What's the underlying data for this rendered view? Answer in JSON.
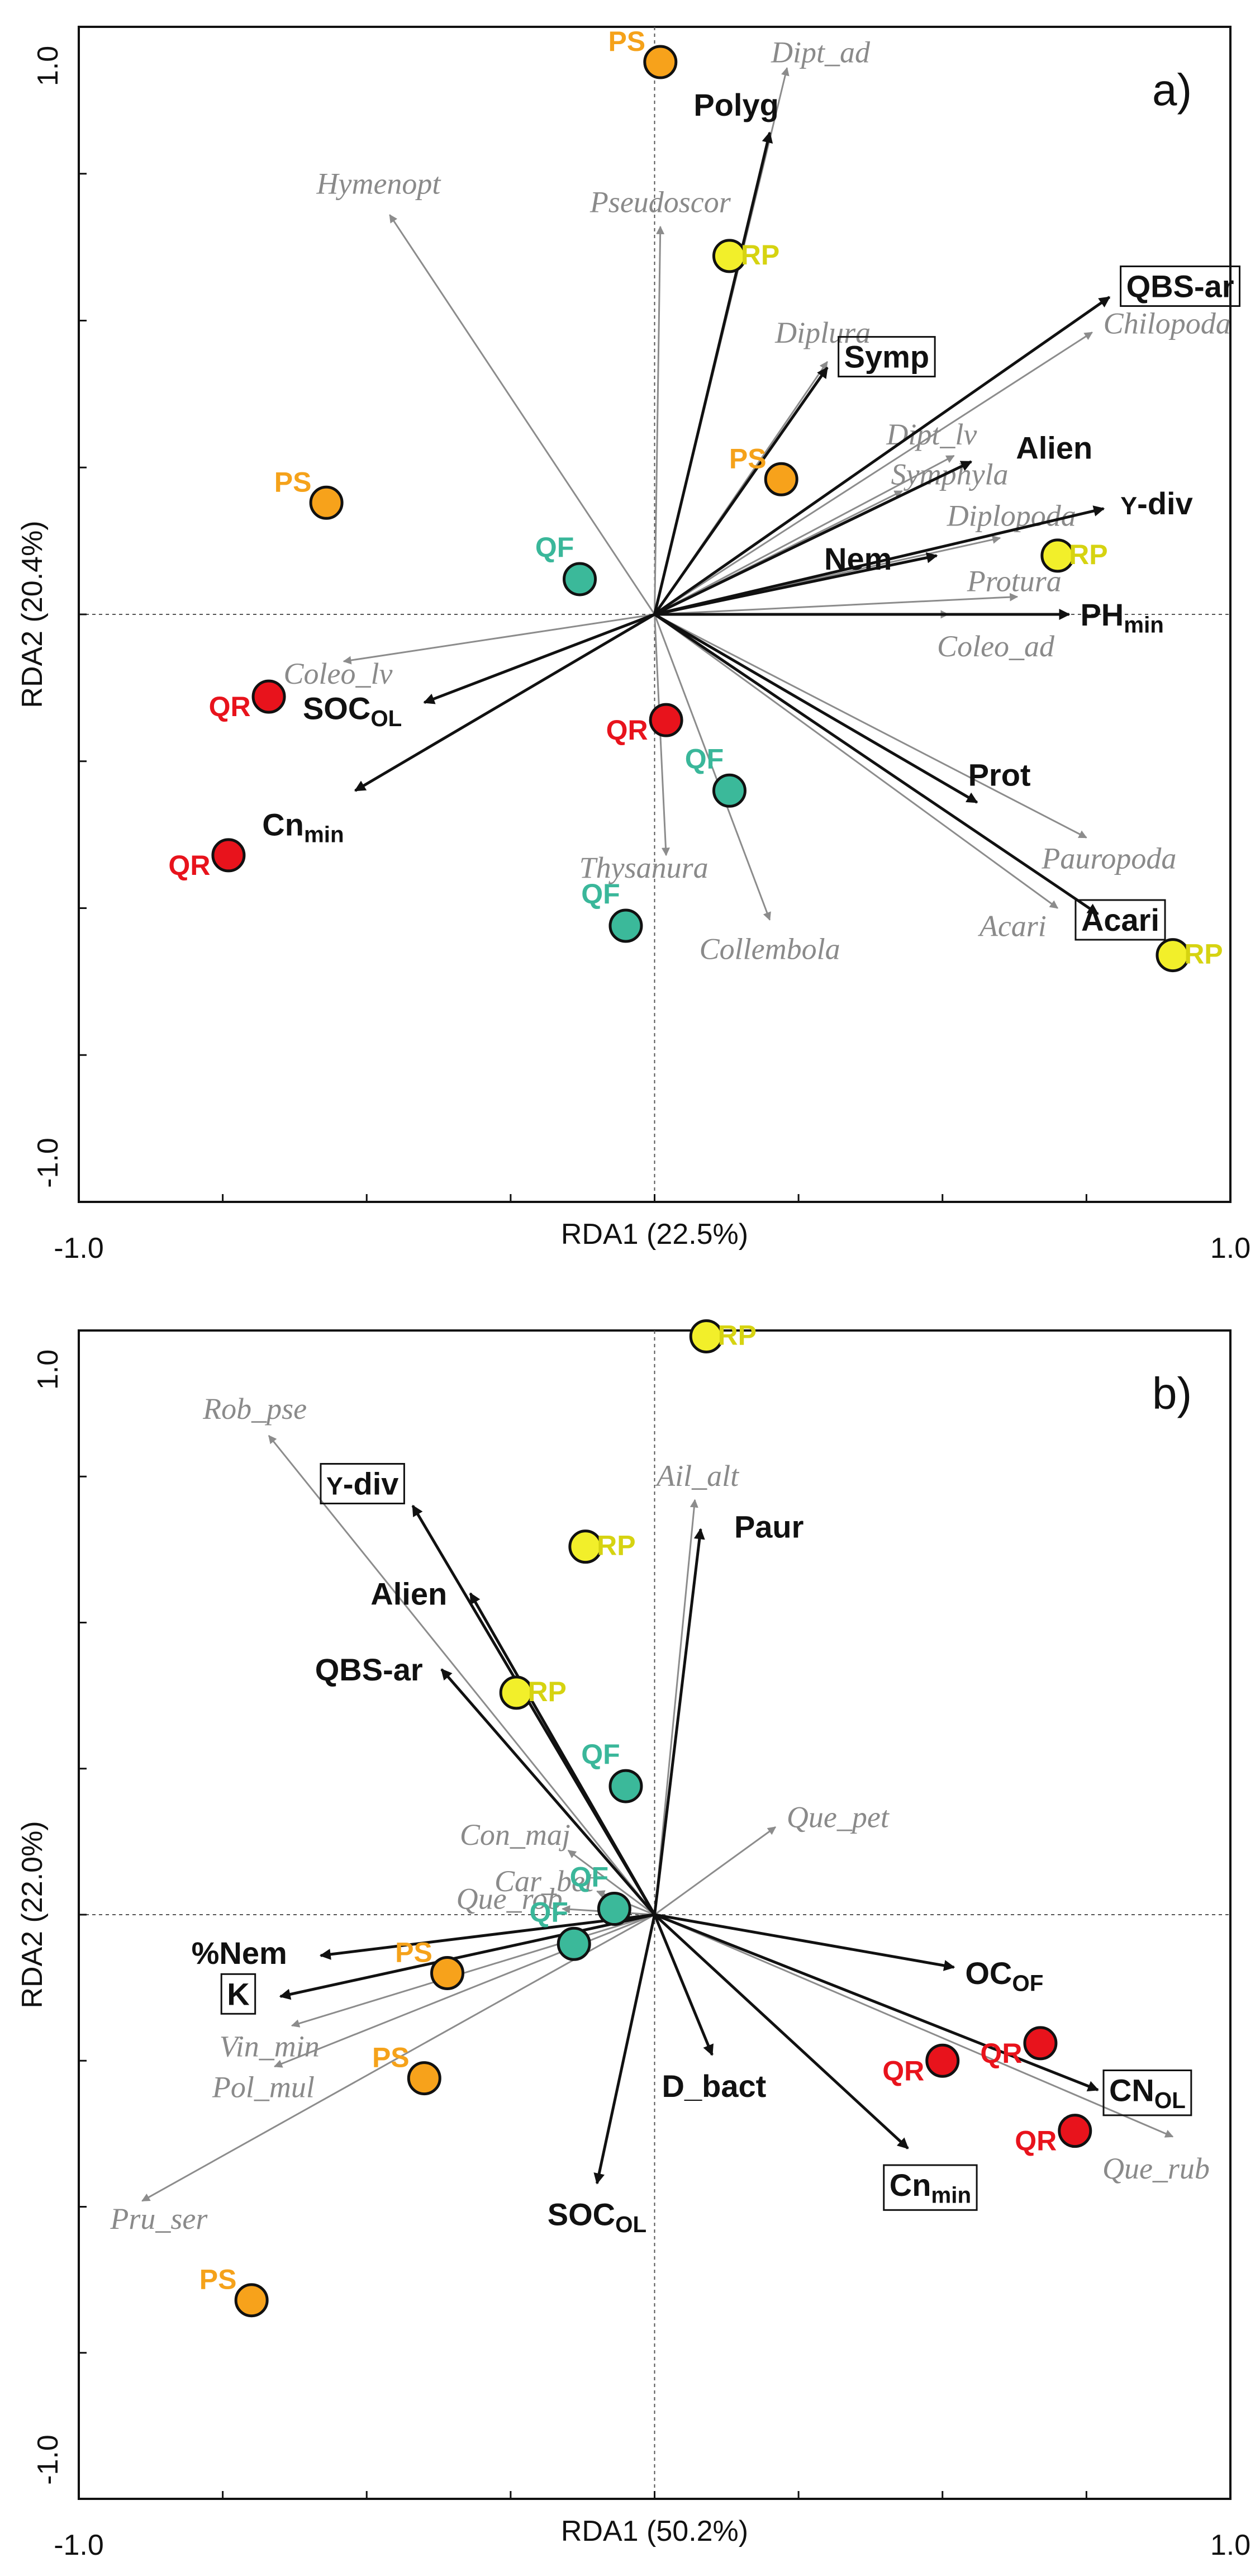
{
  "chart_data": [
    {
      "type": "scatter",
      "subtype": "rda-biplot",
      "panel_label": "a)",
      "xlabel": "RDA1 (22.5%)",
      "ylabel": "RDA2 (20.4%)",
      "xlim": [
        -1.0,
        1.0
      ],
      "ylim": [
        -1.0,
        1.0
      ],
      "x_ticks": [
        "-1.0",
        "1.0"
      ],
      "y_ticks": [
        "1.0",
        "-1.0"
      ],
      "species_vectors": [
        {
          "label": "Dipt_ad",
          "x": 0.23,
          "y": 0.93
        },
        {
          "label": "Hymenopt",
          "x": -0.46,
          "y": 0.68
        },
        {
          "label": "Pseudoscor",
          "x": 0.01,
          "y": 0.66
        },
        {
          "label": "Diplura",
          "x": 0.3,
          "y": 0.43
        },
        {
          "label": "Chilopoda",
          "x": 0.76,
          "y": 0.48
        },
        {
          "label": "Dipt_lv",
          "x": 0.52,
          "y": 0.27
        },
        {
          "label": "Symphyla",
          "x": 0.43,
          "y": 0.21
        },
        {
          "label": "Diplopoda",
          "x": 0.6,
          "y": 0.13
        },
        {
          "label": "Protura",
          "x": 0.63,
          "y": 0.03
        },
        {
          "label": "Coleo_ad",
          "x": 0.51,
          "y": -0.0
        },
        {
          "label": "Coleo_lv",
          "x": -0.54,
          "y": -0.08
        },
        {
          "label": "Pauropoda",
          "x": 0.75,
          "y": -0.38
        },
        {
          "label": "Acari",
          "x": 0.7,
          "y": -0.5
        },
        {
          "label": "Thysanura",
          "x": 0.02,
          "y": -0.41
        },
        {
          "label": "Collembola",
          "x": 0.2,
          "y": -0.52
        }
      ],
      "env_vectors": [
        {
          "label": "Polyg",
          "boxed": false,
          "x": 0.2,
          "y": 0.82
        },
        {
          "label": "QBS-ar",
          "boxed": true,
          "x": 0.79,
          "y": 0.54
        },
        {
          "label": "Symp",
          "boxed": true,
          "x": 0.3,
          "y": 0.42
        },
        {
          "label": "Alien",
          "boxed": false,
          "x": 0.55,
          "y": 0.26
        },
        {
          "label": "Y-div",
          "boxed": false,
          "x": 0.78,
          "y": 0.18
        },
        {
          "label": "Nem",
          "boxed": false,
          "x": 0.49,
          "y": 0.1
        },
        {
          "label": "PHmin",
          "boxed": false,
          "x": 0.72,
          "y": 0.0
        },
        {
          "label": "SOCOL",
          "boxed": false,
          "x": -0.4,
          "y": -0.15
        },
        {
          "label": "Cnmin",
          "boxed": false,
          "x": -0.52,
          "y": -0.3
        },
        {
          "label": "Prot",
          "boxed": false,
          "x": 0.56,
          "y": -0.32
        },
        {
          "label": "Acari",
          "boxed": true,
          "x": 0.77,
          "y": -0.51
        }
      ],
      "sites": [
        {
          "label": "PS",
          "group": "PS",
          "x": 0.01,
          "y": 0.94
        },
        {
          "label": "RP",
          "group": "RP",
          "x": 0.13,
          "y": 0.61
        },
        {
          "label": "PS",
          "group": "PS",
          "x": 0.22,
          "y": 0.23
        },
        {
          "label": "PS",
          "group": "PS",
          "x": -0.57,
          "y": 0.19
        },
        {
          "label": "QF",
          "group": "QF",
          "x": -0.13,
          "y": 0.06
        },
        {
          "label": "RP",
          "group": "RP",
          "x": 0.7,
          "y": 0.1
        },
        {
          "label": "QR",
          "group": "QR",
          "x": -0.67,
          "y": -0.14
        },
        {
          "label": "QR",
          "group": "QR",
          "x": 0.02,
          "y": -0.18
        },
        {
          "label": "QF",
          "group": "QF",
          "x": 0.13,
          "y": -0.3
        },
        {
          "label": "QR",
          "group": "QR",
          "x": -0.74,
          "y": -0.41
        },
        {
          "label": "QF",
          "group": "QF",
          "x": -0.05,
          "y": -0.53
        },
        {
          "label": "RP",
          "group": "RP",
          "x": 0.9,
          "y": -0.58
        }
      ],
      "grid": false,
      "dashed_zero_lines": true
    },
    {
      "type": "scatter",
      "subtype": "rda-biplot",
      "panel_label": "b)",
      "xlabel": "RDA1 (50.2%)",
      "ylabel": "RDA2 (22.0%)",
      "xlim": [
        -1.0,
        1.0
      ],
      "ylim": [
        -1.0,
        1.0
      ],
      "x_ticks": [
        "-1.0",
        "1.0"
      ],
      "y_ticks": [
        "1.0",
        "-1.0"
      ],
      "species_vectors": [
        {
          "label": "Rob_pse",
          "x": -0.67,
          "y": 0.82
        },
        {
          "label": "Ail_alt",
          "x": 0.07,
          "y": 0.71
        },
        {
          "label": "Con_maj",
          "x": -0.15,
          "y": 0.11
        },
        {
          "label": "Que_pet",
          "x": 0.21,
          "y": 0.15
        },
        {
          "label": "Car_bet",
          "x": -0.1,
          "y": 0.04
        },
        {
          "label": "Que_rob",
          "x": -0.16,
          "y": 0.01
        },
        {
          "label": "Vin_min",
          "x": -0.63,
          "y": -0.19
        },
        {
          "label": "Pol_mul",
          "x": -0.66,
          "y": -0.26
        },
        {
          "label": "Pru_ser",
          "x": -0.89,
          "y": -0.49
        },
        {
          "label": "Que_rub",
          "x": 0.9,
          "y": -0.38
        }
      ],
      "env_vectors": [
        {
          "label": "Y-div",
          "boxed": true,
          "x": -0.42,
          "y": 0.7
        },
        {
          "label": "Alien",
          "boxed": false,
          "x": -0.32,
          "y": 0.55
        },
        {
          "label": "QBS-ar",
          "boxed": false,
          "x": -0.37,
          "y": 0.42
        },
        {
          "label": "Paur",
          "boxed": false,
          "x": 0.08,
          "y": 0.66
        },
        {
          "label": "%Nem",
          "boxed": false,
          "x": -0.58,
          "y": -0.07
        },
        {
          "label": "K",
          "boxed": true,
          "x": -0.65,
          "y": -0.14
        },
        {
          "label": "OCOF",
          "boxed": false,
          "x": 0.52,
          "y": -0.09
        },
        {
          "label": "CNOL",
          "boxed": true,
          "x": 0.77,
          "y": -0.3
        },
        {
          "label": "D_bact",
          "boxed": false,
          "x": 0.1,
          "y": -0.24
        },
        {
          "label": "Cnmin",
          "boxed": true,
          "x": 0.44,
          "y": -0.4
        },
        {
          "label": "SOCOL",
          "boxed": false,
          "x": -0.1,
          "y": -0.46
        }
      ],
      "sites": [
        {
          "label": "RP",
          "group": "RP",
          "x": 0.09,
          "y": 0.99
        },
        {
          "label": "RP",
          "group": "RP",
          "x": -0.12,
          "y": 0.63
        },
        {
          "label": "RP",
          "group": "RP",
          "x": -0.24,
          "y": 0.38
        },
        {
          "label": "QF",
          "group": "QF",
          "x": -0.05,
          "y": 0.22
        },
        {
          "label": "QF",
          "group": "QF",
          "x": -0.07,
          "y": 0.01
        },
        {
          "label": "QF",
          "group": "QF",
          "x": -0.14,
          "y": -0.05
        },
        {
          "label": "PS",
          "group": "PS",
          "x": -0.36,
          "y": -0.1
        },
        {
          "label": "PS",
          "group": "PS",
          "x": -0.4,
          "y": -0.28
        },
        {
          "label": "PS",
          "group": "PS",
          "x": -0.7,
          "y": -0.66
        },
        {
          "label": "QR",
          "group": "QR",
          "x": 0.5,
          "y": -0.25
        },
        {
          "label": "QR",
          "group": "QR",
          "x": 0.67,
          "y": -0.22
        },
        {
          "label": "QR",
          "group": "QR",
          "x": 0.73,
          "y": -0.37
        }
      ],
      "grid": false,
      "dashed_zero_lines": true
    }
  ],
  "colors": {
    "PS": "#f7a21b",
    "RP": "#f2ef2a",
    "QF": "#3bb99a",
    "QR": "#e8131c",
    "PS_label": "#f5a21a",
    "RP_label": "#d6d311",
    "QF_label": "#3ab79a",
    "QR_label": "#e8131c",
    "species_arrow": "#8c8c8c",
    "env_arrow": "#111111"
  }
}
